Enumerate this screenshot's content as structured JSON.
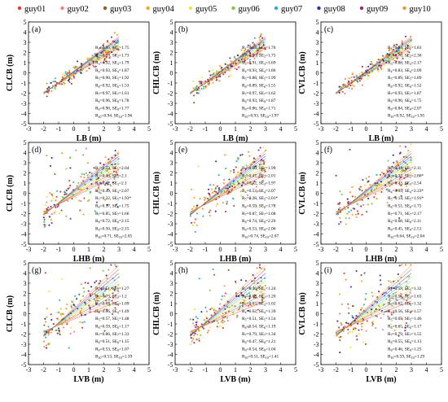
{
  "legend": {
    "items": [
      {
        "label": "guy01",
        "color": "#e8392b"
      },
      {
        "label": "guy02",
        "color": "#f08080"
      },
      {
        "label": "guy03",
        "color": "#8b5a2b"
      },
      {
        "label": "guy04",
        "color": "#f5a623"
      },
      {
        "label": "guy05",
        "color": "#f0e442"
      },
      {
        "label": "guy06",
        "color": "#7ac943"
      },
      {
        "label": "guy07",
        "color": "#29abe2"
      },
      {
        "label": "guy08",
        "color": "#2e3192"
      },
      {
        "label": "guy09",
        "color": "#93278f"
      },
      {
        "label": "guy10",
        "color": "#f7931e"
      }
    ]
  },
  "chart_data": [
    {
      "type": "scatter",
      "panel": "(a)",
      "xlabel": "LB (m)",
      "ylabel": "CLCB (m)",
      "xlim": [
        -3,
        5
      ],
      "ylim": [
        -5,
        5
      ],
      "xticks": [
        "-3",
        "-2",
        "-1",
        "0",
        "1",
        "2",
        "3",
        "4",
        "5"
      ],
      "yticks": [
        "-5",
        "-4",
        "-3",
        "-2",
        "-1",
        "0",
        "1",
        "2",
        "3",
        "4",
        "5"
      ],
      "stats": [
        {
          "id": "1",
          "r2": "0.95",
          "se": "1.75"
        },
        {
          "id": "2",
          "r2": "0.93",
          "se": "1.73"
        },
        {
          "id": "3",
          "r2": "0.92",
          "se": "1.79"
        },
        {
          "id": "4",
          "r2": "0.93",
          "se": "1.87"
        },
        {
          "id": "5",
          "r2": "0.90",
          "se": "1.92"
        },
        {
          "id": "6",
          "r2": "0.92",
          "se": "1.53"
        },
        {
          "id": "7",
          "r2": "0.97",
          "se": "1.61"
        },
        {
          "id": "8",
          "r2": "0.96",
          "se": "1.78"
        },
        {
          "id": "9",
          "r2": "0.90",
          "se": "1.77"
        },
        {
          "id": "10",
          "r2": "0.94",
          "se": "1.96"
        }
      ]
    },
    {
      "type": "scatter",
      "panel": "(b)",
      "xlabel": "LB (m)",
      "ylabel": "CHLCB (m)",
      "xlim": [
        -3,
        5
      ],
      "ylim": [
        -5,
        5
      ],
      "xticks": [
        "-3",
        "-2",
        "-1",
        "0",
        "1",
        "2",
        "3",
        "4",
        "5"
      ],
      "yticks": [
        "-5",
        "-4",
        "-3",
        "-2",
        "-1",
        "0",
        "1",
        "2",
        "3",
        "4",
        "5"
      ],
      "stats": [
        {
          "id": "1",
          "r2": "0.93",
          "se": "1.70"
        },
        {
          "id": "2",
          "r2": "0.90",
          "se": "1.73"
        },
        {
          "id": "3",
          "r2": "0.91",
          "se": "1.69"
        },
        {
          "id": "4",
          "r2": "0.93",
          "se": "1.86"
        },
        {
          "id": "5",
          "r2": "0.88",
          "se": "1.99"
        },
        {
          "id": "6",
          "r2": "0.89",
          "se": "1.55"
        },
        {
          "id": "7",
          "r2": "0.97",
          "se": "1.62"
        },
        {
          "id": "8",
          "r2": "0.93",
          "se": "1.87"
        },
        {
          "id": "9",
          "r2": "0.86",
          "se": "1.71"
        },
        {
          "id": "10",
          "r2": "0.93",
          "se": "1.97"
        }
      ]
    },
    {
      "type": "scatter",
      "panel": "(c)",
      "xlabel": "LB (m)",
      "ylabel": "CVLCB (m)",
      "xlim": [
        -3,
        5
      ],
      "ylim": [
        -5,
        5
      ],
      "xticks": [
        "-3",
        "-2",
        "-1",
        "0",
        "1",
        "2",
        "3",
        "4",
        "5"
      ],
      "yticks": [
        "-5",
        "-4",
        "-3",
        "-2",
        "-1",
        "0",
        "1",
        "2",
        "3",
        "4",
        "5"
      ],
      "stats": [
        {
          "id": "1",
          "r2": "0.94",
          "se": "1.83"
        },
        {
          "id": "2",
          "r2": "0.70",
          "se": "2.36"
        },
        {
          "id": "3",
          "r2": "0.88",
          "se": "2.17"
        },
        {
          "id": "4",
          "r2": "0.83",
          "se": "2.09"
        },
        {
          "id": "5",
          "r2": "0.89",
          "se": "1.89"
        },
        {
          "id": "6",
          "r2": "0.92",
          "se": "1.52"
        },
        {
          "id": "7",
          "r2": "0.93",
          "se": "1.87"
        },
        {
          "id": "8",
          "r2": "0.96",
          "se": "1.75"
        },
        {
          "id": "9",
          "r2": "0.84",
          "se": "2.07"
        },
        {
          "id": "10",
          "r2": "0.92",
          "se": "1.95"
        }
      ]
    },
    {
      "type": "scatter",
      "panel": "(d)",
      "xlabel": "LHB (m)",
      "ylabel": "CLCB (m)",
      "xlim": [
        -3,
        5
      ],
      "ylim": [
        -5,
        5
      ],
      "xticks": [
        "-3",
        "-2",
        "-1",
        "0",
        "1",
        "2",
        "3",
        "4",
        "5"
      ],
      "yticks": [
        "-5",
        "-4",
        "-3",
        "-2",
        "-1",
        "0",
        "1",
        "2",
        "3",
        "4",
        "5"
      ],
      "stats": [
        {
          "id": "1",
          "r2": "0.53",
          "se": "2.04"
        },
        {
          "id": "2",
          "r2": "0.46",
          "se": "2.1"
        },
        {
          "id": "3",
          "r2": "0.42",
          "se": "2.1"
        },
        {
          "id": "4",
          "r2": "0.49",
          "se": "2.07"
        },
        {
          "id": "5",
          "r2": "0.22",
          "se": "1.93*"
        },
        {
          "id": "6",
          "r2": "0.57",
          "se": "1.75"
        },
        {
          "id": "7",
          "r2": "0.85",
          "se": "1.66"
        },
        {
          "id": "8",
          "r2": "0.72",
          "se": "2.15"
        },
        {
          "id": "9",
          "r2": "0.50",
          "se": "2.15"
        },
        {
          "id": "10",
          "r2": "0.71",
          "se": "2.05"
        }
      ]
    },
    {
      "type": "scatter",
      "panel": "(e)",
      "xlabel": "LHB (m)",
      "ylabel": "CHLCB (m)",
      "xlim": [
        -3,
        5
      ],
      "ylim": [
        -5,
        5
      ],
      "xticks": [
        "-3",
        "-2",
        "-1",
        "0",
        "1",
        "2",
        "3",
        "4",
        "5"
      ],
      "yticks": [
        "-5",
        "-4",
        "-3",
        "-2",
        "-1",
        "0",
        "1",
        "2",
        "3",
        "4",
        "5"
      ],
      "stats": [
        {
          "id": "1",
          "r2": "0.60",
          "se": "1.99"
        },
        {
          "id": "2",
          "r2": "0.47",
          "se": "2.01"
        },
        {
          "id": "3",
          "r2": "0.42",
          "se": "1.97"
        },
        {
          "id": "4",
          "r2": "0.53",
          "se": "2.07"
        },
        {
          "id": "5",
          "r2": "0.28",
          "se": "2.01*"
        },
        {
          "id": "6",
          "r2": "0.59",
          "se": "1.78"
        },
        {
          "id": "7",
          "r2": "0.87",
          "se": "1.68"
        },
        {
          "id": "8",
          "r2": "0.74",
          "se": "2.26"
        },
        {
          "id": "9",
          "r2": "0.53",
          "se": "2.06"
        },
        {
          "id": "10",
          "r2": "0.74",
          "se": "2.07"
        }
      ]
    },
    {
      "type": "scatter",
      "panel": "(f)",
      "xlabel": "LHB (m)",
      "ylabel": "CVLCB (m)",
      "xlim": [
        -3,
        5
      ],
      "ylim": [
        -5,
        5
      ],
      "xticks": [
        "-3",
        "-2",
        "-1",
        "0",
        "1",
        "2",
        "3",
        "4",
        "5"
      ],
      "yticks": [
        "-5",
        "-4",
        "-3",
        "-2",
        "-1",
        "0",
        "1",
        "2",
        "3",
        "4",
        "5"
      ],
      "stats": [
        {
          "id": "1",
          "r2": "0.44",
          "se": "2.11"
        },
        {
          "id": "2",
          "r2": "0.32",
          "se": "2.86*"
        },
        {
          "id": "3",
          "r2": "0.43",
          "se": "2.54"
        },
        {
          "id": "4",
          "r2": "0.39",
          "se": "2.33*"
        },
        {
          "id": "5",
          "r2": "0.14",
          "se": "1.91*"
        },
        {
          "id": "6",
          "r2": "0.51",
          "se": "1.75"
        },
        {
          "id": "7",
          "r2": "0.71",
          "se": "2.17"
        },
        {
          "id": "8",
          "r2": "0.68",
          "se": "2.11"
        },
        {
          "id": "9",
          "r2": "0.45",
          "se": "2.51"
        },
        {
          "id": "10",
          "r2": "0.64",
          "se": "2.04"
        }
      ]
    },
    {
      "type": "scatter",
      "panel": "(g)",
      "xlabel": "LVB (m)",
      "ylabel": "CLCB (m)",
      "xlim": [
        -3,
        5
      ],
      "ylim": [
        -5,
        5
      ],
      "xticks": [
        "-3",
        "-2",
        "-1",
        "0",
        "1",
        "2",
        "3",
        "4",
        "5"
      ],
      "yticks": [
        "-5",
        "-4",
        "-3",
        "-2",
        "-1",
        "0",
        "1",
        "2",
        "3",
        "4",
        "5"
      ],
      "stats": [
        {
          "id": "1",
          "r2": "0.51",
          "se": "1.27"
        },
        {
          "id": "2",
          "r2": "0.73",
          "se": "1.2"
        },
        {
          "id": "3",
          "r2": "0.63",
          "se": "1.09"
        },
        {
          "id": "4",
          "r2": "0.66",
          "se": "1.49"
        },
        {
          "id": "5",
          "r2": "0.57",
          "se": "1.48"
        },
        {
          "id": "6",
          "r2": "0.59",
          "se": "1.17"
        },
        {
          "id": "7",
          "r2": "0.86",
          "se": "1.33"
        },
        {
          "id": "8",
          "r2": "0.51",
          "se": "1.15"
        },
        {
          "id": "9",
          "r2": "0.53",
          "se": "1.07"
        },
        {
          "id": "10",
          "r2": "0.53",
          "se": "1.39"
        }
      ]
    },
    {
      "type": "scatter",
      "panel": "(h)",
      "xlabel": "LVB (m)",
      "ylabel": "CHLCB (m)",
      "xlim": [
        -3,
        5
      ],
      "ylim": [
        -5,
        5
      ],
      "xticks": [
        "-3",
        "-2",
        "-1",
        "0",
        "1",
        "2",
        "3",
        "4",
        "5"
      ],
      "yticks": [
        "-5",
        "-4",
        "-3",
        "-2",
        "-1",
        "0",
        "1",
        "2",
        "3",
        "4",
        "5"
      ],
      "stats": [
        {
          "id": "1",
          "r2": "0.46",
          "se": "1.24"
        },
        {
          "id": "2",
          "r2": "0.68",
          "se": "1.20"
        },
        {
          "id": "3",
          "r2": "0.63",
          "se": "1.02"
        },
        {
          "id": "4",
          "r2": "0.62",
          "se": "1.39"
        },
        {
          "id": "5",
          "r2": "0.51",
          "se": "1.54"
        },
        {
          "id": "6",
          "r2": "0.54",
          "se": "1.19"
        },
        {
          "id": "7",
          "r2": "0.79",
          "se": "1.34"
        },
        {
          "id": "8",
          "r2": "0.47",
          "se": "1.21"
        },
        {
          "id": "9",
          "r2": "0.54",
          "se": "1.04"
        },
        {
          "id": "10",
          "r2": "0.51",
          "se": "1.41"
        }
      ]
    },
    {
      "type": "scatter",
      "panel": "(i)",
      "xlabel": "LVB (m)",
      "ylabel": "CVLCB (m)",
      "xlim": [
        -3,
        5
      ],
      "ylim": [
        -5,
        5
      ],
      "xticks": [
        "-3",
        "-2",
        "-1",
        "0",
        "1",
        "2",
        "3",
        "4",
        "5"
      ],
      "yticks": [
        "-5",
        "-4",
        "-3",
        "-2",
        "-1",
        "0",
        "1",
        "2",
        "3",
        "4",
        "5"
      ],
      "stats": [
        {
          "id": "1",
          "r2": "0.59",
          "se": "1.32"
        },
        {
          "id": "2",
          "r2": "0.55",
          "se": "1.63"
        },
        {
          "id": "3",
          "r2": "0.62",
          "se": "1.32"
        },
        {
          "id": "4",
          "r2": "0.56",
          "se": "1.57"
        },
        {
          "id": "5",
          "r2": "0.65",
          "se": "1.46"
        },
        {
          "id": "6",
          "r2": "0.65",
          "se": "1.17"
        },
        {
          "id": "7",
          "r2": "0.79",
          "se": "1.55"
        },
        {
          "id": "8",
          "r2": "0.55",
          "se": "1.13"
        },
        {
          "id": "9",
          "r2": "0.46",
          "se": "1.25"
        },
        {
          "id": "10",
          "r2": "0.59",
          "se": "1.29"
        }
      ]
    }
  ]
}
